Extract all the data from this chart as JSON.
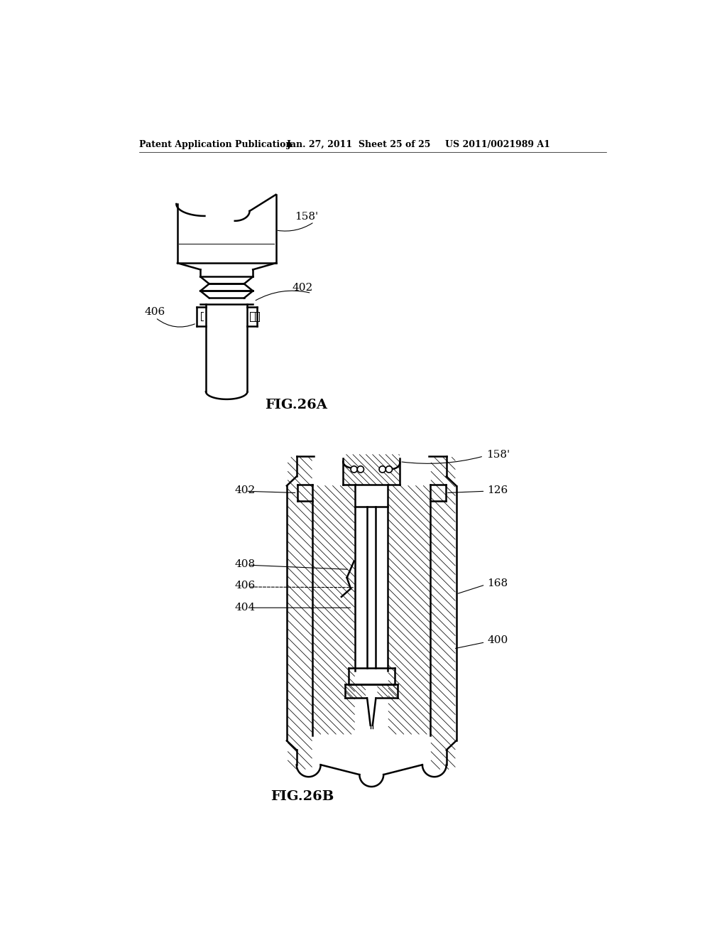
{
  "bg_color": "#ffffff",
  "line_color": "#000000",
  "header_left": "Patent Application Publication",
  "header_mid": "Jan. 27, 2011  Sheet 25 of 25",
  "header_right": "US 2011/0021989 A1",
  "fig_a_label": "FIG.26A",
  "fig_b_label": "FIG.26B",
  "lw_main": 1.8,
  "lw_thin": 0.7,
  "lw_hatch": 0.55,
  "font_size_header": 9,
  "font_size_label": 14,
  "font_size_annot": 11
}
